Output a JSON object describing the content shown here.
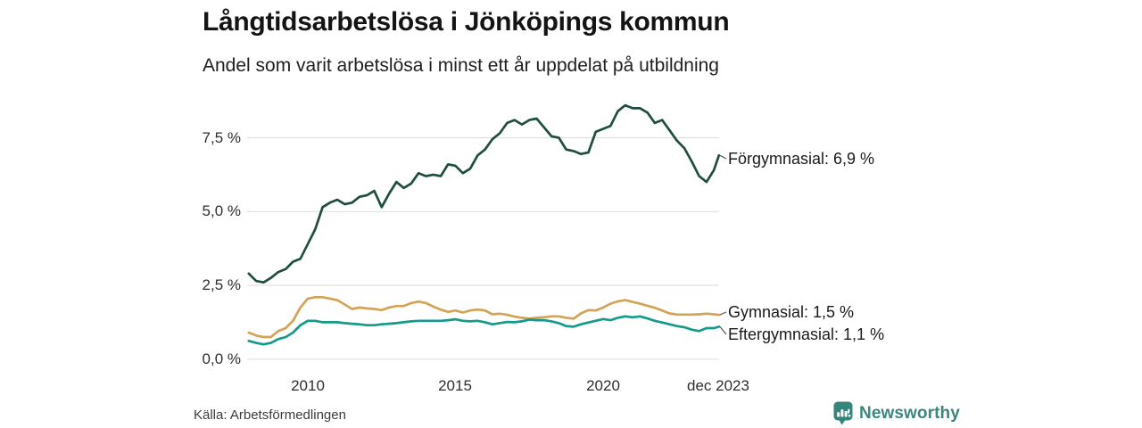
{
  "chart_data": {
    "type": "line",
    "title": "Långtidsarbetslösa i Jönköpings kommun",
    "subtitle": "Andel som varit arbetslösa i minst ett år uppdelat på utbildning",
    "xlabel": "",
    "ylabel": "",
    "grid": "horizontal",
    "legend_position": "right-end-labels",
    "ylim": [
      0,
      8.8
    ],
    "x_range_note": "monthly share, sampled quarterly, 2008 - dec 2023",
    "yticks": [
      {
        "value": 0.0,
        "label": "0,0 %"
      },
      {
        "value": 2.5,
        "label": "2,5 %"
      },
      {
        "value": 5.0,
        "label": "5,0 %"
      },
      {
        "value": 7.5,
        "label": "7,5 %"
      }
    ],
    "xticks": [
      {
        "value": 2010,
        "label": "2010"
      },
      {
        "value": 2015,
        "label": "2015"
      },
      {
        "value": 2020,
        "label": "2020"
      },
      {
        "value": 2023.92,
        "label": "dec 2023"
      }
    ],
    "x": [
      2008,
      2008.25,
      2008.5,
      2008.75,
      2009,
      2009.25,
      2009.5,
      2009.75,
      2010,
      2010.25,
      2010.5,
      2010.75,
      2011,
      2011.25,
      2011.5,
      2011.75,
      2012,
      2012.25,
      2012.5,
      2012.75,
      2013,
      2013.25,
      2013.5,
      2013.75,
      2014,
      2014.25,
      2014.5,
      2014.75,
      2015,
      2015.25,
      2015.5,
      2015.75,
      2016,
      2016.25,
      2016.5,
      2016.75,
      2017,
      2017.25,
      2017.5,
      2017.75,
      2018,
      2018.25,
      2018.5,
      2018.75,
      2019,
      2019.25,
      2019.5,
      2019.75,
      2020,
      2020.25,
      2020.5,
      2020.75,
      2021,
      2021.25,
      2021.5,
      2021.75,
      2022,
      2022.25,
      2022.5,
      2022.75,
      2023,
      2023.25,
      2023.5,
      2023.75,
      2023.92
    ],
    "series": [
      {
        "name": "Förgymnasial",
        "color": "#1f4e3f",
        "end_value": 6.9,
        "end_label": "Förgymnasial: 6,9 %",
        "values": [
          2.9,
          2.65,
          2.6,
          2.75,
          2.95,
          3.05,
          3.3,
          3.4,
          3.9,
          4.4,
          5.15,
          5.3,
          5.4,
          5.25,
          5.3,
          5.5,
          5.55,
          5.7,
          5.15,
          5.6,
          6.0,
          5.8,
          5.95,
          6.3,
          6.2,
          6.25,
          6.2,
          6.6,
          6.55,
          6.3,
          6.45,
          6.9,
          7.1,
          7.45,
          7.65,
          8.0,
          8.1,
          7.95,
          8.1,
          8.15,
          7.85,
          7.55,
          7.5,
          7.1,
          7.05,
          6.95,
          7.0,
          7.7,
          7.8,
          7.9,
          8.4,
          8.6,
          8.5,
          8.5,
          8.35,
          8.0,
          8.1,
          7.75,
          7.4,
          7.15,
          6.7,
          6.2,
          6.0,
          6.4,
          6.9
        ]
      },
      {
        "name": "Gymnasial",
        "color": "#d3a356",
        "end_value": 1.5,
        "end_label": "Gymnasial: 1,5 %",
        "values": [
          0.9,
          0.8,
          0.75,
          0.75,
          0.95,
          1.05,
          1.3,
          1.75,
          2.05,
          2.1,
          2.1,
          2.05,
          2.0,
          1.85,
          1.7,
          1.75,
          1.72,
          1.7,
          1.66,
          1.75,
          1.8,
          1.8,
          1.9,
          1.95,
          1.9,
          1.78,
          1.68,
          1.6,
          1.65,
          1.58,
          1.65,
          1.68,
          1.65,
          1.52,
          1.54,
          1.5,
          1.44,
          1.4,
          1.37,
          1.4,
          1.42,
          1.45,
          1.45,
          1.4,
          1.37,
          1.55,
          1.66,
          1.65,
          1.75,
          1.88,
          1.96,
          2.0,
          1.94,
          1.88,
          1.81,
          1.74,
          1.65,
          1.55,
          1.51,
          1.51,
          1.51,
          1.52,
          1.54,
          1.52,
          1.5
        ]
      },
      {
        "name": "Eftergymnasial",
        "color": "#149a8b",
        "end_value": 1.1,
        "end_label": "Eftergymnasial: 1,1 %",
        "values": [
          0.62,
          0.55,
          0.5,
          0.55,
          0.68,
          0.75,
          0.9,
          1.15,
          1.3,
          1.3,
          1.25,
          1.25,
          1.25,
          1.22,
          1.2,
          1.18,
          1.15,
          1.15,
          1.18,
          1.2,
          1.22,
          1.25,
          1.28,
          1.3,
          1.3,
          1.3,
          1.3,
          1.32,
          1.35,
          1.3,
          1.28,
          1.3,
          1.25,
          1.18,
          1.22,
          1.26,
          1.25,
          1.28,
          1.34,
          1.32,
          1.32,
          1.28,
          1.22,
          1.12,
          1.1,
          1.18,
          1.24,
          1.3,
          1.36,
          1.32,
          1.4,
          1.45,
          1.42,
          1.45,
          1.38,
          1.3,
          1.24,
          1.18,
          1.12,
          1.08,
          1.0,
          0.95,
          1.05,
          1.05,
          1.1
        ]
      }
    ]
  },
  "footer": {
    "source": "Källa: Arbetsförmedlingen",
    "brand": "Newsworthy",
    "brand_color": "#3a867d"
  },
  "colors": {
    "grid": "#e0e0e0",
    "background": "#ffffff",
    "text": "#1a1a1a"
  }
}
